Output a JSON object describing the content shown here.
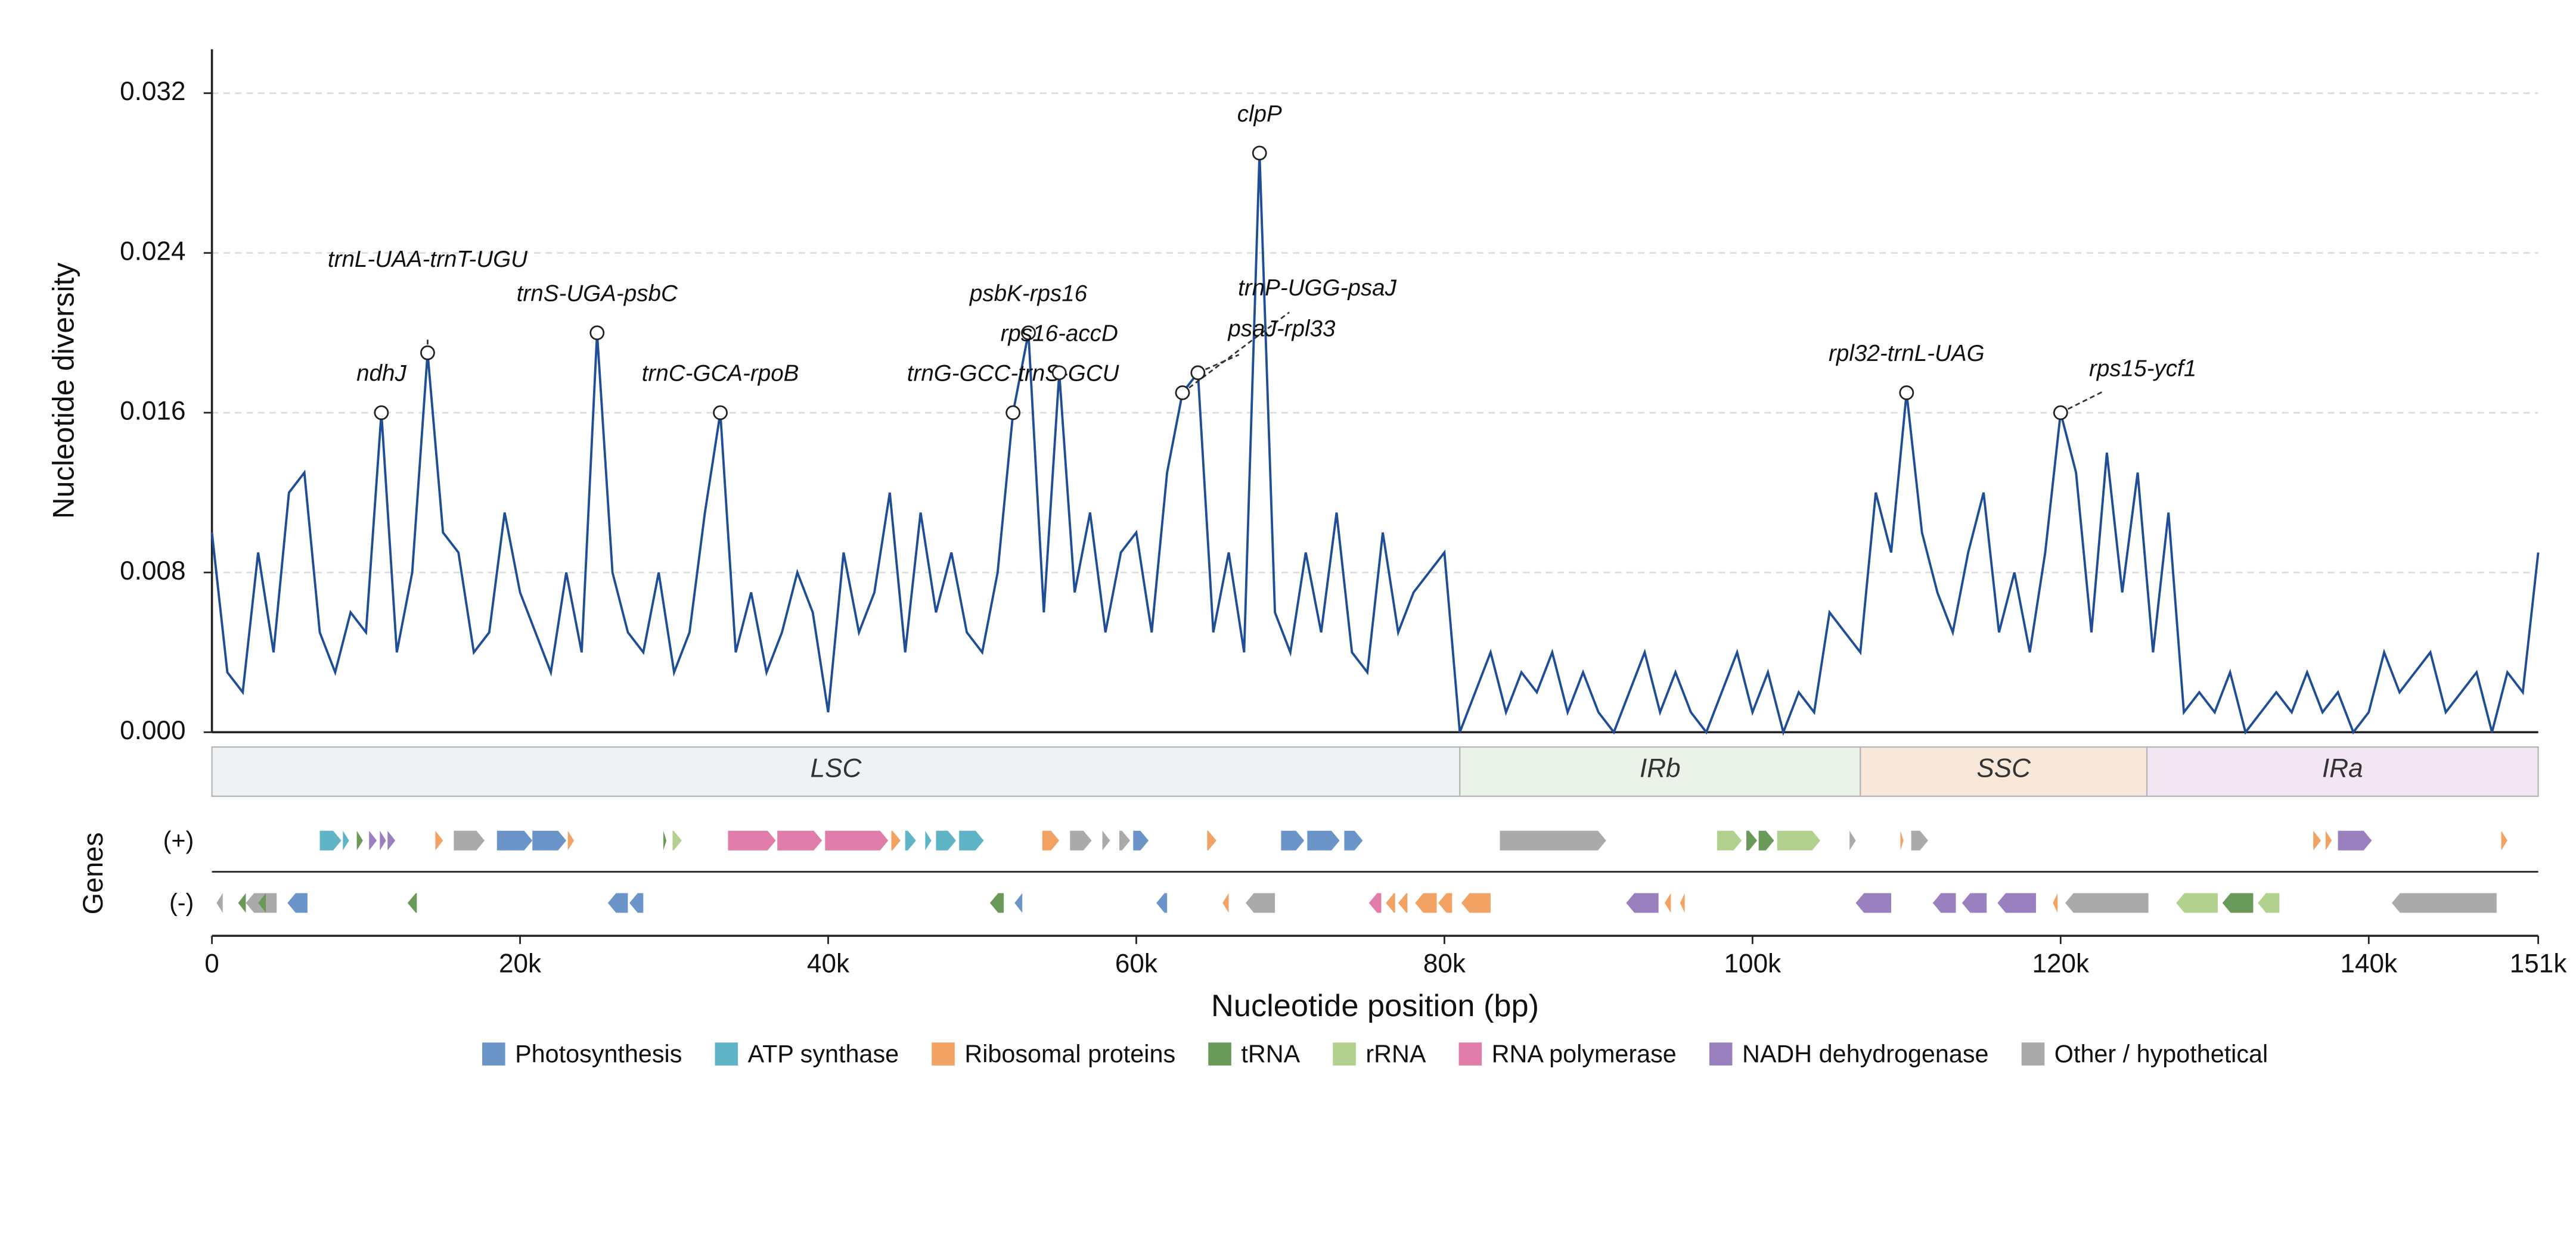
{
  "chart_data": {
    "type": "line",
    "y_label": "Nucleotide diversity",
    "x_label": "Nucleotide position (bp)",
    "color": "#1f4e96",
    "grid": true,
    "xlim": [
      0,
      151000
    ],
    "ylim": [
      0,
      0.0342
    ],
    "yticks": [
      {
        "value": 0,
        "label": "0.000"
      },
      {
        "value": 0.008,
        "label": "0.008"
      },
      {
        "value": 0.016,
        "label": "0.016"
      },
      {
        "value": 0.024,
        "label": "0.024"
      },
      {
        "value": 0.032,
        "label": "0.032"
      }
    ],
    "xticks": [
      0,
      {
        "value": 20000,
        "label": "20k"
      },
      {
        "value": 40000,
        "label": "40k"
      },
      {
        "value": 60000,
        "label": "60k"
      },
      {
        "value": 80000,
        "label": "80k"
      },
      {
        "value": 100000,
        "label": "100k"
      },
      {
        "value": 120000,
        "label": "120k"
      },
      {
        "value": 151000,
        "label": "151k"
      },
      {
        "value": 140000,
        "label": "140k"
      }
    ],
    "x": [
      0,
      1000,
      2000,
      3000,
      4000,
      5000,
      6000,
      7000,
      8000,
      9000,
      10000,
      11000,
      12000,
      13000,
      14000,
      15000,
      16000,
      17000,
      18000,
      19000,
      20000,
      21000,
      22000,
      23000,
      24000,
      25000,
      26000,
      27000,
      28000,
      29000,
      30000,
      31000,
      32000,
      33000,
      34000,
      35000,
      36000,
      37000,
      38000,
      39000,
      40000,
      41000,
      42000,
      43000,
      44000,
      45000,
      46000,
      47000,
      48000,
      49000,
      50000,
      51000,
      52000,
      53000,
      54000,
      55000,
      56000,
      57000,
      58000,
      59000,
      60000,
      61000,
      62000,
      63000,
      64000,
      65000,
      66000,
      67000,
      68000,
      69000,
      70000,
      71000,
      72000,
      73000,
      74000,
      75000,
      76000,
      77000,
      78000,
      79000,
      80000,
      81000,
      82000,
      83000,
      84000,
      85000,
      86000,
      87000,
      88000,
      89000,
      90000,
      91000,
      92000,
      93000,
      94000,
      95000,
      96000,
      97000,
      98000,
      99000,
      100000,
      101000,
      102000,
      103000,
      104000,
      105000,
      106000,
      107000,
      108000,
      109000,
      110000,
      111000,
      112000,
      113000,
      114000,
      115000,
      116000,
      117000,
      118000,
      119000,
      120000,
      121000,
      122000,
      123000,
      124000,
      125000,
      126000,
      127000,
      128000,
      129000,
      130000,
      131000,
      132000,
      133000,
      134000,
      135000,
      136000,
      137000,
      138000,
      139000,
      140000,
      141000,
      142000,
      143000,
      144000,
      145000,
      146000,
      147000,
      148000,
      149000,
      150000,
      151000
    ],
    "values": [
      0.01,
      0.003,
      0.002,
      0.009,
      0.004,
      0.012,
      0.013,
      0.005,
      0.003,
      0.006,
      0.005,
      0.016,
      0.004,
      0.008,
      0.019,
      0.01,
      0.009,
      0.004,
      0.005,
      0.011,
      0.007,
      0.005,
      0.003,
      0.008,
      0.004,
      0.02,
      0.008,
      0.005,
      0.004,
      0.008,
      0.003,
      0.005,
      0.011,
      0.016,
      0.004,
      0.007,
      0.003,
      0.005,
      0.008,
      0.006,
      0.001,
      0.009,
      0.005,
      0.007,
      0.012,
      0.004,
      0.011,
      0.006,
      0.009,
      0.005,
      0.004,
      0.008,
      0.016,
      0.02,
      0.006,
      0.018,
      0.007,
      0.011,
      0.005,
      0.009,
      0.01,
      0.005,
      0.013,
      0.017,
      0.018,
      0.005,
      0.009,
      0.004,
      0.029,
      0.006,
      0.004,
      0.009,
      0.005,
      0.011,
      0.004,
      0.003,
      0.01,
      0.005,
      0.007,
      0.008,
      0.009,
      0.0,
      0.002,
      0.004,
      0.001,
      0.003,
      0.002,
      0.004,
      0.001,
      0.003,
      0.001,
      0.0,
      0.002,
      0.004,
      0.001,
      0.003,
      0.001,
      0.0,
      0.002,
      0.004,
      0.001,
      0.003,
      0.0,
      0.002,
      0.001,
      0.006,
      0.005,
      0.004,
      0.012,
      0.009,
      0.017,
      0.01,
      0.007,
      0.005,
      0.009,
      0.012,
      0.005,
      0.008,
      0.004,
      0.009,
      0.016,
      0.013,
      0.005,
      0.014,
      0.007,
      0.013,
      0.004,
      0.011,
      0.001,
      0.002,
      0.001,
      0.003,
      0.0,
      0.001,
      0.002,
      0.001,
      0.003,
      0.001,
      0.002,
      0.0,
      0.001,
      0.004,
      0.002,
      0.003,
      0.004,
      0.001,
      0.002,
      0.003,
      0.0,
      0.003,
      0.002,
      0.009
    ],
    "annotations": [
      {
        "label": "ndhJ",
        "x": 11000,
        "y": 0.016
      },
      {
        "label": "trnL-UAA-trnT-UGU",
        "x": 14000,
        "y": 0.019
      },
      {
        "label": "trnS-UGA-psbC",
        "x": 25000,
        "y": 0.02
      },
      {
        "label": "trnC-GCA-rpoB",
        "x": 33000,
        "y": 0.016
      },
      {
        "label": "trnG-GCC-trnS-GCU",
        "x": 52000,
        "y": 0.016
      },
      {
        "label": "psbK-rps16",
        "x": 53000,
        "y": 0.02
      },
      {
        "label": "rps16-accD",
        "x": 55000,
        "y": 0.018
      },
      {
        "label": "trnP-UGG-psaJ",
        "x": 63000,
        "y": 0.017
      },
      {
        "label": "psaJ-rpl33",
        "x": 64000,
        "y": 0.018
      },
      {
        "label": "clpP",
        "x": 68000,
        "y": 0.029
      },
      {
        "label": "rpl32-trnL-UAG",
        "x": 110000,
        "y": 0.017
      },
      {
        "label": "rps15-ycf1",
        "x": 120000,
        "y": 0.016
      }
    ],
    "regions": [
      {
        "name": "LSC",
        "start": 0,
        "end": 81000,
        "color": "#eef2f5"
      },
      {
        "name": "IRb",
        "start": 81000,
        "end": 107000,
        "color": "#ebf2e8"
      },
      {
        "name": "SSC",
        "start": 107000,
        "end": 125600,
        "color": "#f8e8da"
      },
      {
        "name": "IRa",
        "start": 125600,
        "end": 151000,
        "color": "#f1e6f1"
      }
    ],
    "gene_axis_label": "Genes",
    "categories": [
      {
        "name": "Photosynthesis",
        "color": "#6b95c9"
      },
      {
        "name": "ATP synthase",
        "color": "#5fb5c6"
      },
      {
        "name": "Ribosomal proteins",
        "color": "#f2a263"
      },
      {
        "name": "tRNA",
        "color": "#6a9a5a"
      },
      {
        "name": "rRNA",
        "color": "#b2d08e"
      },
      {
        "name": "RNA polymerase",
        "color": "#e07daa"
      },
      {
        "name": "NADH dehydrogenase",
        "color": "#9b80bf"
      },
      {
        "name": "Other / hypothetical",
        "color": "#aaaaaa"
      }
    ],
    "gene_tracks": [
      {
        "label": "(+)",
        "genes": [
          [
            7000,
            8400,
            "ATP synthase"
          ],
          [
            8500,
            8900,
            "ATP synthase"
          ],
          [
            9400,
            9800,
            "tRNA"
          ],
          [
            10200,
            10700,
            "NADH dehydrogenase"
          ],
          [
            10900,
            11300,
            "NADH dehydrogenase"
          ],
          [
            11400,
            11900,
            "NADH dehydrogenase"
          ],
          [
            14500,
            15000,
            "Ribosomal proteins"
          ],
          [
            15700,
            17700,
            "Other / hypothetical"
          ],
          [
            18500,
            20800,
            "Photosynthesis"
          ],
          [
            20800,
            23000,
            "Photosynthesis"
          ],
          [
            23100,
            23500,
            "Ribosomal proteins"
          ],
          [
            29300,
            29500,
            "tRNA"
          ],
          [
            29900,
            30500,
            "rRNA"
          ],
          [
            33500,
            36600,
            "RNA polymerase"
          ],
          [
            36700,
            39600,
            "RNA polymerase"
          ],
          [
            39800,
            43900,
            "RNA polymerase"
          ],
          [
            44100,
            44700,
            "Ribosomal proteins"
          ],
          [
            45000,
            45700,
            "ATP synthase"
          ],
          [
            46300,
            46700,
            "ATP synthase"
          ],
          [
            47000,
            48300,
            "ATP synthase"
          ],
          [
            48500,
            50100,
            "ATP synthase"
          ],
          [
            53900,
            55000,
            "Ribosomal proteins"
          ],
          [
            55700,
            57100,
            "Other / hypothetical"
          ],
          [
            57800,
            58300,
            "Other / hypothetical"
          ],
          [
            58900,
            59600,
            "Other / hypothetical"
          ],
          [
            59800,
            60800,
            "Photosynthesis"
          ],
          [
            64600,
            65200,
            "Ribosomal proteins"
          ],
          [
            69400,
            70900,
            "Photosynthesis"
          ],
          [
            71100,
            73200,
            "Photosynthesis"
          ],
          [
            73500,
            74700,
            "Photosynthesis"
          ],
          [
            83600,
            90500,
            "Other / hypothetical"
          ],
          [
            97700,
            99300,
            "rRNA"
          ],
          [
            99600,
            100300,
            "tRNA"
          ],
          [
            100400,
            101400,
            "tRNA"
          ],
          [
            101600,
            104400,
            "rRNA"
          ],
          [
            106300,
            106700,
            "Other / hypothetical"
          ],
          [
            109600,
            109800,
            "Ribosomal proteins"
          ],
          [
            110300,
            111400,
            "Other / hypothetical"
          ],
          [
            136400,
            136900,
            "Ribosomal proteins"
          ],
          [
            137200,
            137600,
            "Ribosomal proteins"
          ],
          [
            138000,
            140200,
            "NADH dehydrogenase"
          ],
          [
            148600,
            149000,
            "Ribosomal proteins"
          ]
        ]
      },
      {
        "label": "(-)",
        "genes": [
          [
            300,
            700,
            "Other / hypothetical"
          ],
          [
            1700,
            2200,
            "tRNA"
          ],
          [
            2200,
            4200,
            "Other / hypothetical"
          ],
          [
            3000,
            3500,
            "tRNA"
          ],
          [
            4900,
            6200,
            "Photosynthesis"
          ],
          [
            12700,
            13300,
            "tRNA"
          ],
          [
            25700,
            27000,
            "Photosynthesis"
          ],
          [
            27100,
            28000,
            "Photosynthesis"
          ],
          [
            50500,
            51400,
            "tRNA"
          ],
          [
            52100,
            52600,
            "Photosynthesis"
          ],
          [
            61300,
            62000,
            "Photosynthesis"
          ],
          [
            65600,
            66000,
            "Ribosomal proteins"
          ],
          [
            67100,
            69000,
            "Other / hypothetical"
          ],
          [
            75100,
            75900,
            "RNA polymerase"
          ],
          [
            76200,
            76800,
            "Ribosomal proteins"
          ],
          [
            77000,
            77600,
            "Ribosomal proteins"
          ],
          [
            78100,
            79500,
            "Ribosomal proteins"
          ],
          [
            79600,
            80500,
            "Ribosomal proteins"
          ],
          [
            81100,
            83000,
            "Ribosomal proteins"
          ],
          [
            91800,
            93900,
            "NADH dehydrogenase"
          ],
          [
            94300,
            94700,
            "Ribosomal proteins"
          ],
          [
            95300,
            95600,
            "Ribosomal proteins"
          ],
          [
            106700,
            109000,
            "NADH dehydrogenase"
          ],
          [
            111700,
            113200,
            "NADH dehydrogenase"
          ],
          [
            113600,
            115200,
            "NADH dehydrogenase"
          ],
          [
            115900,
            118400,
            "NADH dehydrogenase"
          ],
          [
            119500,
            119800,
            "Ribosomal proteins"
          ],
          [
            120300,
            125700,
            "Other / hypothetical"
          ],
          [
            127500,
            130200,
            "rRNA"
          ],
          [
            130500,
            132500,
            "tRNA"
          ],
          [
            132800,
            134200,
            "rRNA"
          ],
          [
            141500,
            148300,
            "Other / hypothetical"
          ]
        ]
      }
    ]
  }
}
